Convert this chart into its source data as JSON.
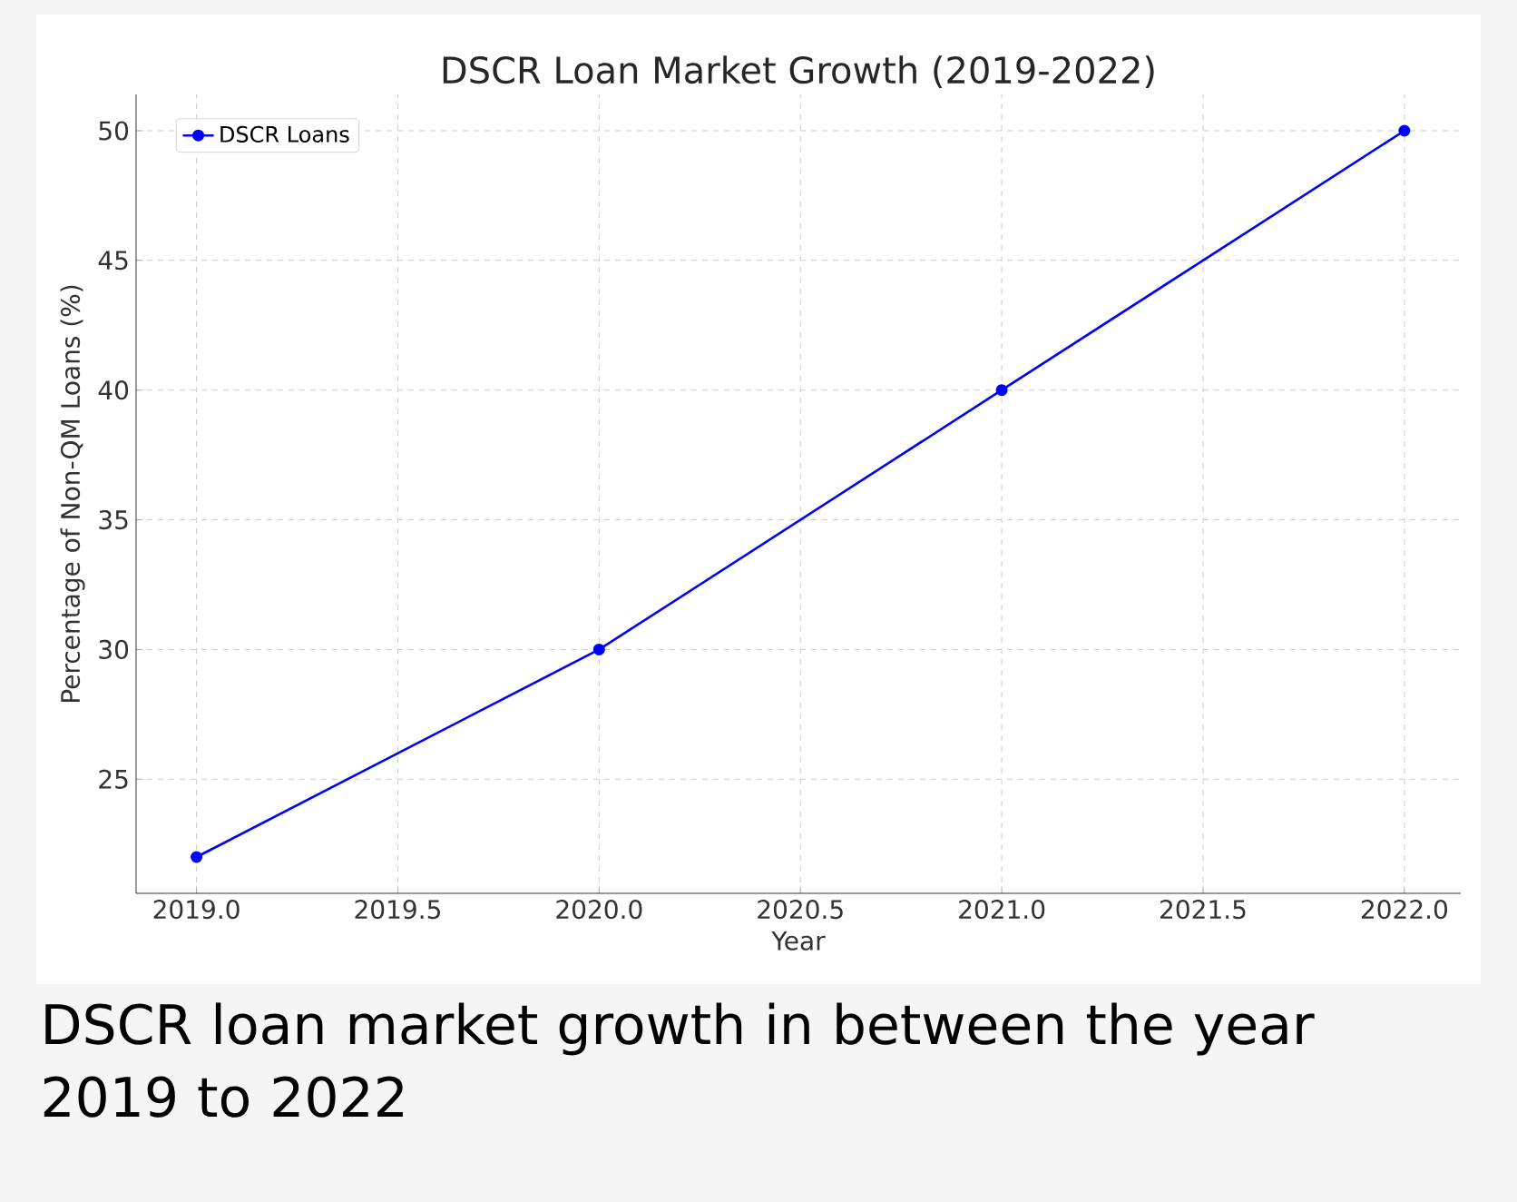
{
  "chart_data": {
    "type": "line",
    "title": "DSCR Loan Market Growth (2019-2022)",
    "xlabel": "Year",
    "ylabel": "Percentage of Non-QM Loans (%)",
    "x": [
      2019,
      2020,
      2021,
      2022
    ],
    "series": [
      {
        "name": "DSCR Loans",
        "color": "#0000ff",
        "values": [
          22,
          30,
          40,
          50
        ]
      }
    ],
    "xlim": [
      2018.85,
      2022.14
    ],
    "ylim": [
      20.6,
      51.4
    ],
    "xticks": [
      {
        "value": 2019,
        "label": "2019.0"
      },
      {
        "value": 2019.5,
        "label": "2019.5"
      },
      {
        "value": 2020,
        "label": "2020.0"
      },
      {
        "value": 2020.5,
        "label": "2020.5"
      },
      {
        "value": 2021,
        "label": "2021.0"
      },
      {
        "value": 2021.5,
        "label": "2021.5"
      },
      {
        "value": 2022,
        "label": "2022.0"
      }
    ],
    "yticks": [
      25,
      30,
      35,
      40,
      45,
      50
    ],
    "grid": true,
    "legend": "top left",
    "marker": "circle",
    "line_style": "solid",
    "annotations": [
      "DSCR loan market growth in between the year 2019 to 2022"
    ]
  }
}
